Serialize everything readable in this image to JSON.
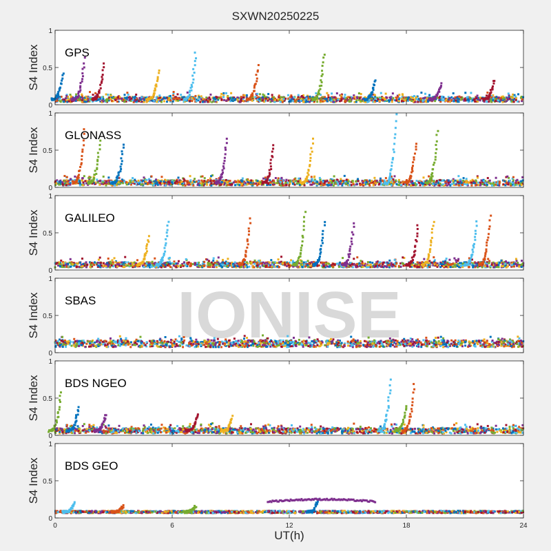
{
  "chart_data": {
    "type": "scatter",
    "title": "SXWN20250225",
    "xlabel": "UT(h)",
    "ylabel": "S4 Index",
    "xlim": [
      0,
      24
    ],
    "ylim": [
      0,
      1
    ],
    "xticks": [
      0,
      6,
      12,
      18,
      24
    ],
    "yticks": [
      0,
      0.5,
      1
    ],
    "grid": false,
    "watermark": "IONISE",
    "series_colors": [
      "#0072BD",
      "#D95319",
      "#EDB120",
      "#7E2F8E",
      "#77AC30",
      "#4DBEEE",
      "#A2142F"
    ],
    "panels": [
      {
        "label": "GPS",
        "baseline": 0.07,
        "peaks": [
          {
            "x": 0.4,
            "y": 0.42
          },
          {
            "x": 1.5,
            "y": 0.62
          },
          {
            "x": 2.5,
            "y": 0.55
          },
          {
            "x": 5.3,
            "y": 0.45
          },
          {
            "x": 7.2,
            "y": 0.7
          },
          {
            "x": 10.4,
            "y": 0.52
          },
          {
            "x": 13.8,
            "y": 0.68
          },
          {
            "x": 16.4,
            "y": 0.33
          },
          {
            "x": 19.8,
            "y": 0.28
          },
          {
            "x": 22.5,
            "y": 0.33
          }
        ]
      },
      {
        "label": "GLONASS",
        "baseline": 0.06,
        "peaks": [
          {
            "x": 1.5,
            "y": 0.78
          },
          {
            "x": 2.3,
            "y": 0.62
          },
          {
            "x": 3.5,
            "y": 0.58
          },
          {
            "x": 8.8,
            "y": 0.66
          },
          {
            "x": 11.2,
            "y": 0.58
          },
          {
            "x": 13.2,
            "y": 0.64
          },
          {
            "x": 17.5,
            "y": 0.98
          },
          {
            "x": 18.5,
            "y": 0.6
          },
          {
            "x": 19.6,
            "y": 0.76
          }
        ]
      },
      {
        "label": "GALILEO",
        "baseline": 0.07,
        "peaks": [
          {
            "x": 4.8,
            "y": 0.45
          },
          {
            "x": 5.8,
            "y": 0.65
          },
          {
            "x": 10.0,
            "y": 0.68
          },
          {
            "x": 12.8,
            "y": 0.78
          },
          {
            "x": 13.8,
            "y": 0.65
          },
          {
            "x": 15.3,
            "y": 0.63
          },
          {
            "x": 18.6,
            "y": 0.6
          },
          {
            "x": 19.4,
            "y": 0.65
          },
          {
            "x": 21.6,
            "y": 0.65
          },
          {
            "x": 22.3,
            "y": 0.72
          }
        ]
      },
      {
        "label": "SBAS",
        "baseline": 0.12,
        "peaks": []
      },
      {
        "label": "BDS NGEO",
        "baseline": 0.06,
        "peaks": [
          {
            "x": 0.3,
            "y": 0.58
          },
          {
            "x": 1.2,
            "y": 0.38
          },
          {
            "x": 2.6,
            "y": 0.28
          },
          {
            "x": 7.3,
            "y": 0.28
          },
          {
            "x": 9.1,
            "y": 0.25
          },
          {
            "x": 17.2,
            "y": 0.75
          },
          {
            "x": 18.4,
            "y": 0.68
          },
          {
            "x": 18.0,
            "y": 0.4
          }
        ]
      },
      {
        "label": "BDS GEO",
        "baseline": 0.08,
        "peaks": [
          {
            "x": 1.0,
            "y": 0.2
          },
          {
            "x": 3.5,
            "y": 0.16
          },
          {
            "x": 7.2,
            "y": 0.16
          },
          {
            "x": 13.5,
            "y": 0.26
          }
        ]
      }
    ]
  }
}
